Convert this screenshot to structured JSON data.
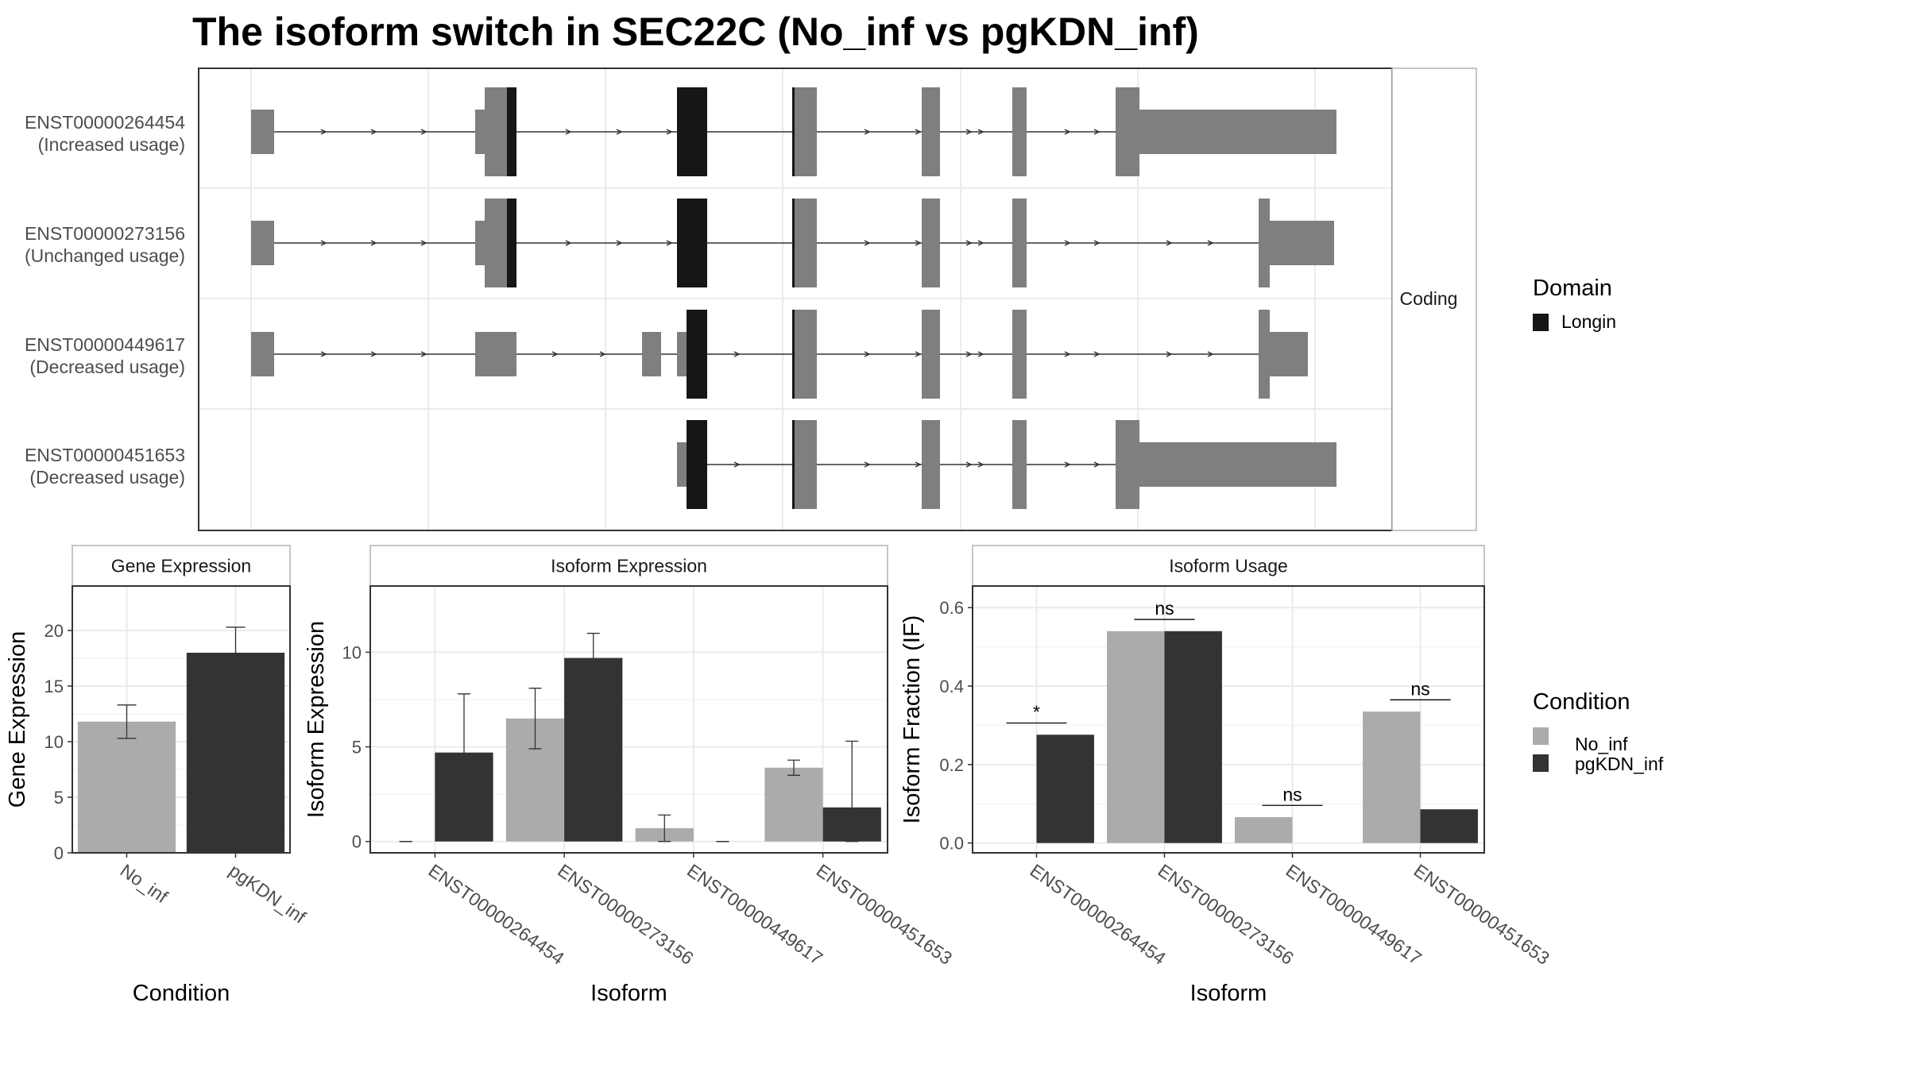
{
  "title": "The isoform switch in SEC22C (No_inf vs pgKDN_inf)",
  "colors": {
    "no_inf": "#ababab",
    "pgkdn_inf": "#333333",
    "domain_longin": "#161616",
    "exon": "#7f7f7f",
    "grid": "#ebebeb",
    "panel_border": "#333333",
    "strip_border": "#b3b3b3"
  },
  "transcript_panel": {
    "facet_label": "Coding",
    "legend_title": "Domain",
    "legend_items": [
      {
        "label": "Longin",
        "color": "#161616"
      }
    ],
    "transcripts": [
      {
        "id": "ENST00000264454",
        "usage": "(Increased usage)"
      },
      {
        "id": "ENST00000273156",
        "usage": "(Unchanged usage)"
      },
      {
        "id": "ENST00000449617",
        "usage": "(Decreased usage)"
      },
      {
        "id": "ENST00000451653",
        "usage": "(Decreased usage)"
      }
    ]
  },
  "condition_legend": {
    "title": "Condition",
    "items": [
      {
        "label": "No_inf",
        "color": "#ababab"
      },
      {
        "label": "pgKDN_inf",
        "color": "#333333"
      }
    ]
  },
  "chart_data": [
    {
      "type": "bar",
      "panel": "Gene Expression",
      "xlabel": "Condition",
      "ylabel": "Gene Expression",
      "categories": [
        "No_inf",
        "pgKDN_inf"
      ],
      "values": [
        11.8,
        18.0
      ],
      "error_low": [
        10.3,
        15.7
      ],
      "error_high": [
        13.3,
        20.3
      ],
      "ylim": [
        0,
        24
      ],
      "yticks": [
        0,
        5,
        10,
        15,
        20
      ]
    },
    {
      "type": "bar",
      "panel": "Isoform Expression",
      "xlabel": "Isoform",
      "ylabel": "Isoform Expression",
      "categories": [
        "ENST00000264454",
        "ENST00000273156",
        "ENST00000449617",
        "ENST00000451653"
      ],
      "series": [
        {
          "name": "No_inf",
          "values": [
            0,
            6.5,
            0.7,
            3.9
          ],
          "error_low": [
            0,
            4.9,
            0,
            3.5
          ],
          "error_high": [
            0,
            8.1,
            1.4,
            4.3
          ]
        },
        {
          "name": "pgKDN_inf",
          "values": [
            4.7,
            9.7,
            0,
            1.8
          ],
          "error_low": [
            1.6,
            8.4,
            0,
            0
          ],
          "error_high": [
            7.8,
            11.0,
            0,
            5.3
          ]
        }
      ],
      "ylim": [
        -0.6,
        13.5
      ],
      "yticks": [
        0,
        5,
        10
      ]
    },
    {
      "type": "bar",
      "panel": "Isoform Usage",
      "xlabel": "Isoform",
      "ylabel": "Isoform Fraction (IF)",
      "categories": [
        "ENST00000264454",
        "ENST00000273156",
        "ENST00000449617",
        "ENST00000451653"
      ],
      "series": [
        {
          "name": "No_inf",
          "values": [
            0,
            0.54,
            0.066,
            0.335
          ]
        },
        {
          "name": "pgKDN_inf",
          "values": [
            0.276,
            0.54,
            0,
            0.086
          ]
        }
      ],
      "significance": [
        "*",
        "ns",
        "ns",
        "ns"
      ],
      "ylim": [
        -0.025,
        0.655
      ],
      "yticks": [
        0.0,
        0.2,
        0.4,
        0.6
      ]
    }
  ]
}
